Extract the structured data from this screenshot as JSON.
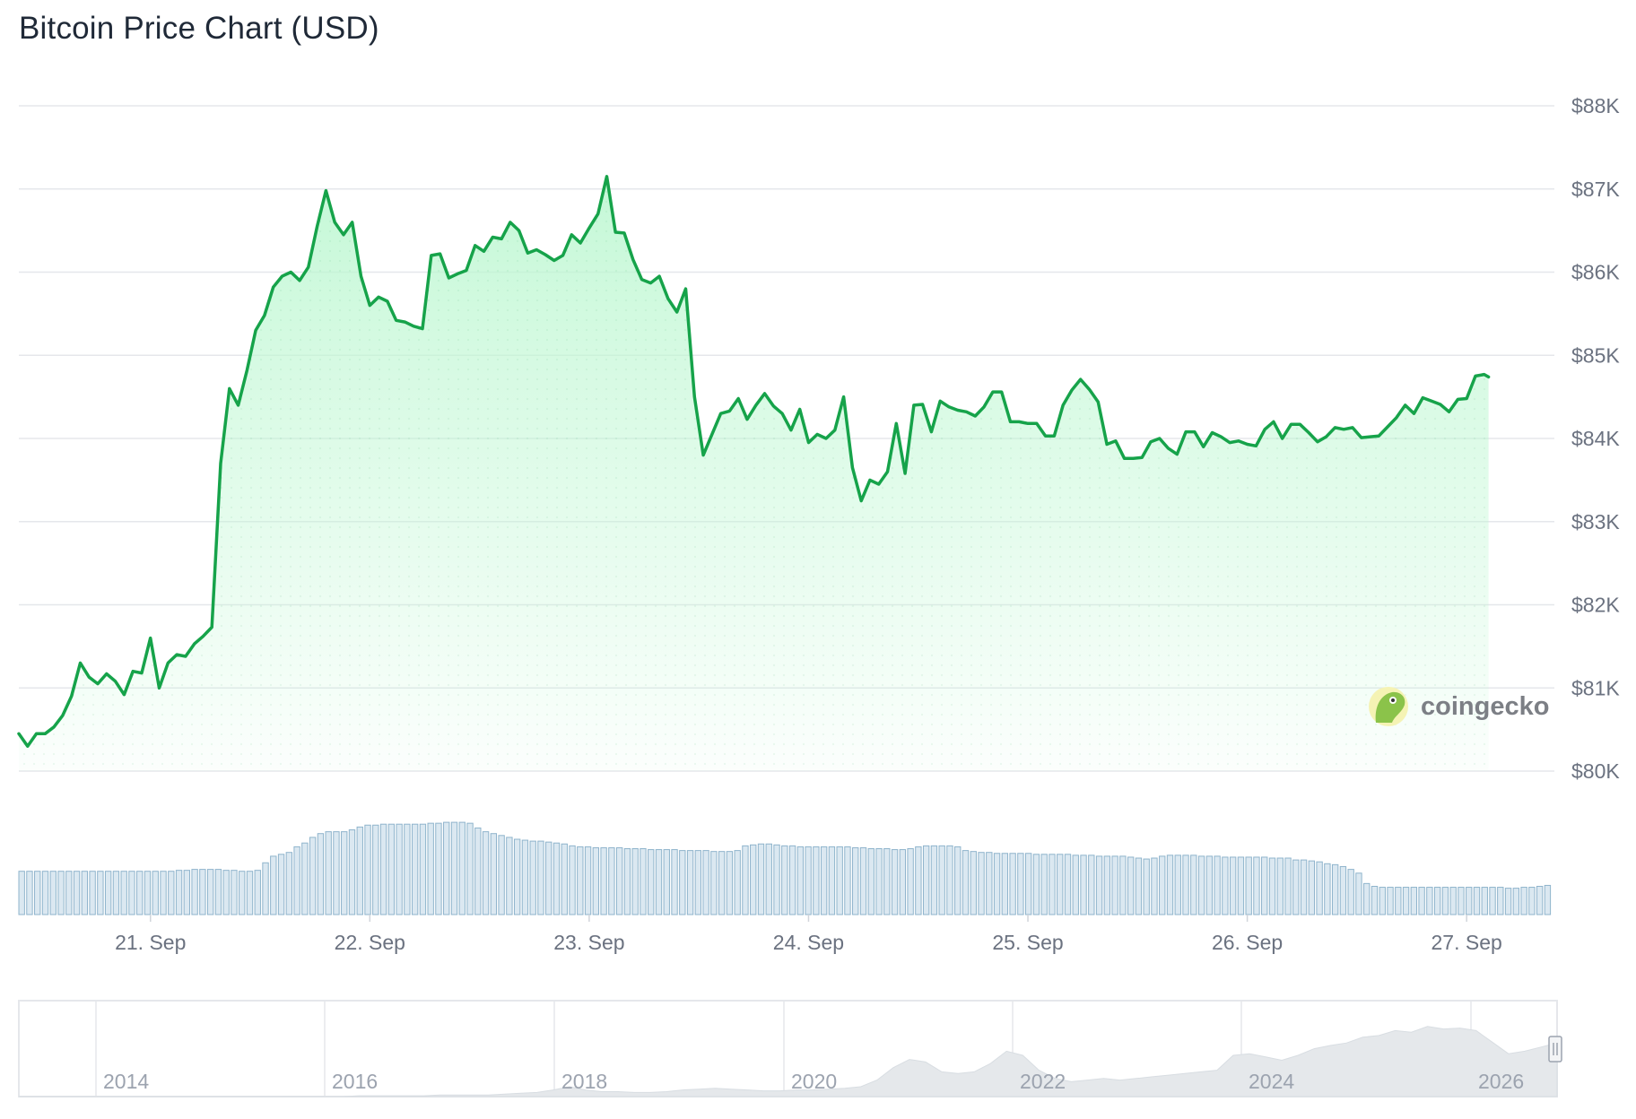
{
  "title": "Bitcoin Price Chart (USD)",
  "colors": {
    "line": "#16a34a",
    "fill_top": "#bbf7d0",
    "volume_bar": "#8fb4cc",
    "grid": "#e5e7eb",
    "navigator_area": "#e5e8eb"
  },
  "chart_data": {
    "type": "line",
    "title": "Bitcoin Price Chart (USD)",
    "y_ticks": [
      "$80K",
      "$81K",
      "$82K",
      "$83K",
      "$84K",
      "$85K",
      "$86K",
      "$87K",
      "$88K"
    ],
    "y_tick_values": [
      80000,
      81000,
      82000,
      83000,
      84000,
      85000,
      86000,
      87000,
      88000
    ],
    "ylim": [
      80000,
      88000
    ],
    "x_ticks": [
      "21. Sep",
      "22. Sep",
      "23. Sep",
      "24. Sep",
      "25. Sep",
      "26. Sep",
      "27. Sep"
    ],
    "x_tick_days": [
      21,
      22,
      23,
      24,
      25,
      26,
      27
    ],
    "xlim_days": [
      20.4,
      27.4
    ],
    "grid": true,
    "series": [
      {
        "values": [
          [
            20.4,
            80450
          ],
          [
            20.44,
            80300
          ],
          [
            20.48,
            80450
          ],
          [
            20.52,
            80450
          ],
          [
            20.56,
            80530
          ],
          [
            20.6,
            80670
          ],
          [
            20.64,
            80900
          ],
          [
            20.68,
            81300
          ],
          [
            20.72,
            81130
          ],
          [
            20.76,
            81050
          ],
          [
            20.8,
            81170
          ],
          [
            20.84,
            81080
          ],
          [
            20.88,
            80920
          ],
          [
            20.92,
            81200
          ],
          [
            20.96,
            81180
          ],
          [
            21.0,
            81600
          ],
          [
            21.04,
            81000
          ],
          [
            21.08,
            81300
          ],
          [
            21.12,
            81400
          ],
          [
            21.16,
            81380
          ],
          [
            21.2,
            81530
          ],
          [
            21.24,
            81620
          ],
          [
            21.28,
            81730
          ],
          [
            21.32,
            83700
          ],
          [
            21.36,
            84600
          ],
          [
            21.4,
            84400
          ],
          [
            21.44,
            84820
          ],
          [
            21.48,
            85300
          ],
          [
            21.52,
            85480
          ],
          [
            21.56,
            85820
          ],
          [
            21.6,
            85950
          ],
          [
            21.64,
            86000
          ],
          [
            21.68,
            85900
          ],
          [
            21.72,
            86060
          ],
          [
            21.76,
            86550
          ],
          [
            21.8,
            86980
          ],
          [
            21.84,
            86600
          ],
          [
            21.88,
            86450
          ],
          [
            21.92,
            86600
          ],
          [
            21.96,
            85950
          ],
          [
            22.0,
            85600
          ],
          [
            22.04,
            85700
          ],
          [
            22.08,
            85650
          ],
          [
            22.12,
            85420
          ],
          [
            22.16,
            85400
          ],
          [
            22.2,
            85350
          ],
          [
            22.24,
            85320
          ],
          [
            22.28,
            86200
          ],
          [
            22.32,
            86220
          ],
          [
            22.36,
            85930
          ],
          [
            22.4,
            85980
          ],
          [
            22.44,
            86020
          ],
          [
            22.48,
            86320
          ],
          [
            22.52,
            86250
          ],
          [
            22.56,
            86420
          ],
          [
            22.6,
            86400
          ],
          [
            22.64,
            86600
          ],
          [
            22.68,
            86500
          ],
          [
            22.72,
            86230
          ],
          [
            22.76,
            86270
          ],
          [
            22.8,
            86210
          ],
          [
            22.84,
            86140
          ],
          [
            22.88,
            86200
          ],
          [
            22.92,
            86450
          ],
          [
            22.96,
            86350
          ],
          [
            23.0,
            86530
          ],
          [
            23.04,
            86700
          ],
          [
            23.08,
            87150
          ],
          [
            23.12,
            86480
          ],
          [
            23.16,
            86470
          ],
          [
            23.2,
            86150
          ],
          [
            23.24,
            85910
          ],
          [
            23.28,
            85870
          ],
          [
            23.32,
            85950
          ],
          [
            23.36,
            85680
          ],
          [
            23.4,
            85520
          ],
          [
            23.44,
            85800
          ],
          [
            23.48,
            84500
          ],
          [
            23.52,
            83800
          ],
          [
            23.56,
            84050
          ],
          [
            23.6,
            84300
          ],
          [
            23.64,
            84330
          ],
          [
            23.68,
            84480
          ],
          [
            23.72,
            84230
          ],
          [
            23.76,
            84400
          ],
          [
            23.8,
            84540
          ],
          [
            23.84,
            84390
          ],
          [
            23.88,
            84300
          ],
          [
            23.92,
            84100
          ],
          [
            23.96,
            84350
          ],
          [
            24.0,
            83950
          ],
          [
            24.04,
            84050
          ],
          [
            24.08,
            84000
          ],
          [
            24.12,
            84100
          ],
          [
            24.16,
            84500
          ],
          [
            24.2,
            83650
          ],
          [
            24.24,
            83250
          ],
          [
            24.28,
            83500
          ],
          [
            24.32,
            83450
          ],
          [
            24.36,
            83600
          ],
          [
            24.4,
            84180
          ],
          [
            24.44,
            83580
          ],
          [
            24.48,
            84400
          ],
          [
            24.52,
            84410
          ],
          [
            24.56,
            84080
          ],
          [
            24.6,
            84450
          ],
          [
            24.64,
            84380
          ],
          [
            24.68,
            84340
          ],
          [
            24.72,
            84320
          ],
          [
            24.76,
            84270
          ],
          [
            24.8,
            84380
          ],
          [
            24.84,
            84560
          ],
          [
            24.88,
            84560
          ],
          [
            24.92,
            84200
          ],
          [
            24.96,
            84200
          ],
          [
            25.0,
            84180
          ],
          [
            25.04,
            84180
          ],
          [
            25.08,
            84030
          ],
          [
            25.12,
            84030
          ],
          [
            25.16,
            84400
          ],
          [
            25.2,
            84580
          ],
          [
            25.24,
            84710
          ],
          [
            25.28,
            84590
          ],
          [
            25.32,
            84440
          ],
          [
            25.36,
            83930
          ],
          [
            25.4,
            83970
          ],
          [
            25.44,
            83760
          ],
          [
            25.48,
            83760
          ],
          [
            25.52,
            83770
          ],
          [
            25.56,
            83960
          ],
          [
            25.6,
            84000
          ],
          [
            25.64,
            83880
          ],
          [
            25.68,
            83810
          ],
          [
            25.72,
            84080
          ],
          [
            25.76,
            84080
          ],
          [
            25.8,
            83900
          ],
          [
            25.84,
            84070
          ],
          [
            25.88,
            84020
          ],
          [
            25.92,
            83950
          ],
          [
            25.96,
            83970
          ],
          [
            26.0,
            83930
          ],
          [
            26.04,
            83910
          ],
          [
            26.08,
            84110
          ],
          [
            26.12,
            84200
          ],
          [
            26.16,
            84000
          ],
          [
            26.2,
            84170
          ],
          [
            26.24,
            84170
          ],
          [
            26.28,
            84070
          ],
          [
            26.32,
            83960
          ],
          [
            26.36,
            84020
          ],
          [
            26.4,
            84130
          ],
          [
            26.44,
            84110
          ],
          [
            26.48,
            84130
          ],
          [
            26.52,
            84010
          ],
          [
            26.56,
            84020
          ],
          [
            26.6,
            84030
          ],
          [
            26.64,
            84140
          ],
          [
            26.68,
            84250
          ],
          [
            26.72,
            84400
          ],
          [
            26.76,
            84300
          ],
          [
            26.8,
            84490
          ],
          [
            26.84,
            84450
          ],
          [
            26.88,
            84410
          ],
          [
            26.92,
            84320
          ],
          [
            26.96,
            84470
          ],
          [
            27.0,
            84480
          ],
          [
            27.04,
            84750
          ],
          [
            27.08,
            84770
          ],
          [
            27.1,
            84740
          ]
        ]
      }
    ],
    "volume": {
      "relative_values": [
        0.46,
        0.46,
        0.46,
        0.46,
        0.46,
        0.46,
        0.46,
        0.46,
        0.46,
        0.46,
        0.46,
        0.46,
        0.46,
        0.46,
        0.46,
        0.46,
        0.46,
        0.46,
        0.46,
        0.46,
        0.47,
        0.47,
        0.48,
        0.48,
        0.48,
        0.48,
        0.47,
        0.47,
        0.46,
        0.46,
        0.47,
        0.55,
        0.62,
        0.64,
        0.66,
        0.72,
        0.76,
        0.82,
        0.86,
        0.88,
        0.88,
        0.88,
        0.9,
        0.93,
        0.95,
        0.95,
        0.96,
        0.96,
        0.96,
        0.96,
        0.96,
        0.96,
        0.97,
        0.97,
        0.98,
        0.98,
        0.98,
        0.97,
        0.92,
        0.88,
        0.86,
        0.84,
        0.82,
        0.8,
        0.79,
        0.78,
        0.78,
        0.77,
        0.76,
        0.75,
        0.73,
        0.72,
        0.72,
        0.71,
        0.71,
        0.71,
        0.71,
        0.7,
        0.7,
        0.7,
        0.69,
        0.69,
        0.69,
        0.69,
        0.68,
        0.68,
        0.68,
        0.68,
        0.67,
        0.67,
        0.67,
        0.68,
        0.73,
        0.74,
        0.75,
        0.75,
        0.74,
        0.73,
        0.73,
        0.72,
        0.72,
        0.72,
        0.72,
        0.72,
        0.72,
        0.72,
        0.71,
        0.71,
        0.7,
        0.7,
        0.7,
        0.69,
        0.69,
        0.7,
        0.72,
        0.73,
        0.73,
        0.73,
        0.73,
        0.72,
        0.68,
        0.67,
        0.66,
        0.66,
        0.65,
        0.65,
        0.65,
        0.65,
        0.65,
        0.64,
        0.64,
        0.64,
        0.64,
        0.64,
        0.63,
        0.63,
        0.63,
        0.62,
        0.62,
        0.62,
        0.62,
        0.61,
        0.6,
        0.59,
        0.6,
        0.62,
        0.63,
        0.63,
        0.63,
        0.63,
        0.62,
        0.62,
        0.62,
        0.61,
        0.61,
        0.61,
        0.61,
        0.61,
        0.61,
        0.6,
        0.6,
        0.6,
        0.58,
        0.58,
        0.57,
        0.56,
        0.54,
        0.53,
        0.51,
        0.48,
        0.44,
        0.33,
        0.3,
        0.29,
        0.29,
        0.29,
        0.29,
        0.29,
        0.29,
        0.29,
        0.29,
        0.29,
        0.29,
        0.29,
        0.29,
        0.29,
        0.29,
        0.29,
        0.29,
        0.28,
        0.28,
        0.29,
        0.29,
        0.3,
        0.31
      ]
    }
  },
  "navigator": {
    "year_ticks": [
      "2014",
      "2016",
      "2018",
      "2020",
      "2022",
      "2024",
      "2026"
    ],
    "relative_values": [
      0.0,
      0.0,
      0.0,
      0.0,
      0.0,
      0.0,
      0.0,
      0.0,
      0.0,
      0.0,
      0.0,
      0.0,
      0.0,
      0.0,
      0.0,
      0.0,
      0.0,
      0.0,
      0.0,
      0.0,
      0.0,
      0.01,
      0.01,
      0.01,
      0.01,
      0.01,
      0.02,
      0.02,
      0.02,
      0.02,
      0.03,
      0.04,
      0.05,
      0.08,
      0.12,
      0.08,
      0.06,
      0.06,
      0.05,
      0.05,
      0.06,
      0.08,
      0.09,
      0.1,
      0.09,
      0.08,
      0.07,
      0.07,
      0.08,
      0.08,
      0.09,
      0.1,
      0.12,
      0.2,
      0.35,
      0.45,
      0.42,
      0.3,
      0.28,
      0.3,
      0.4,
      0.55,
      0.5,
      0.32,
      0.22,
      0.18,
      0.2,
      0.22,
      0.2,
      0.22,
      0.24,
      0.26,
      0.28,
      0.3,
      0.32,
      0.5,
      0.52,
      0.48,
      0.44,
      0.5,
      0.58,
      0.62,
      0.65,
      0.72,
      0.74,
      0.8,
      0.78,
      0.85,
      0.82,
      0.83,
      0.8,
      0.66,
      0.52,
      0.55,
      0.6,
      0.65
    ]
  },
  "watermark": {
    "text": "coingecko"
  }
}
